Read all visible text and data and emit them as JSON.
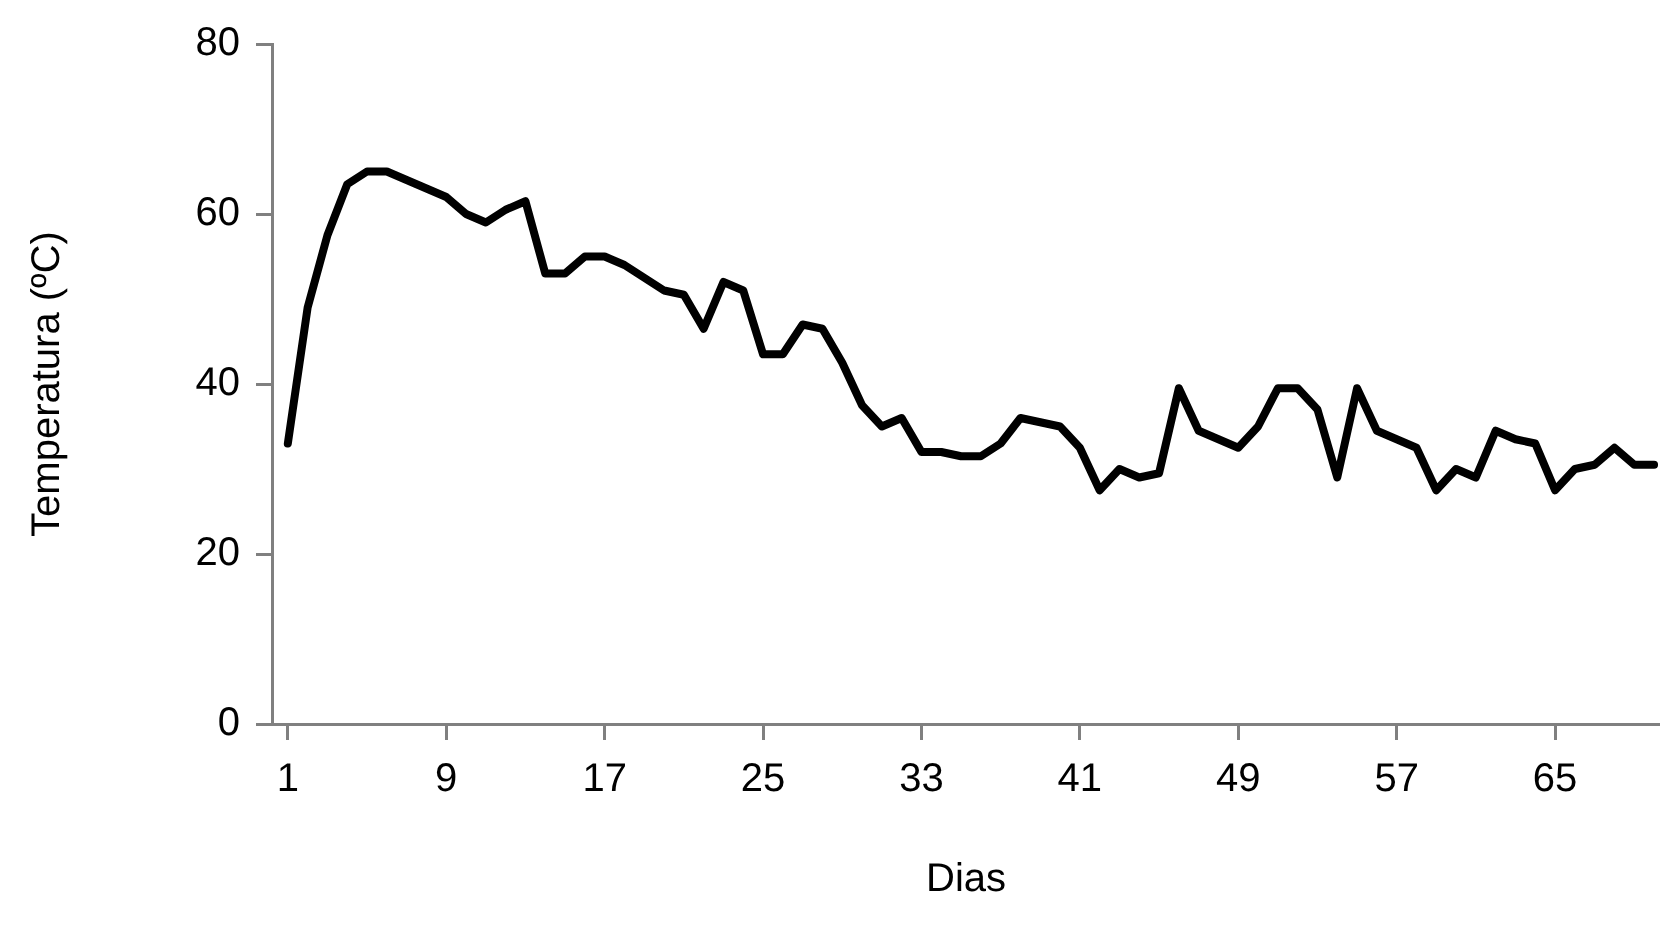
{
  "chart_data": {
    "type": "line",
    "xlabel": "Dias",
    "ylabel": "Temperatura (ºC)",
    "x": [
      1,
      2,
      3,
      4,
      5,
      6,
      7,
      8,
      9,
      10,
      11,
      12,
      13,
      14,
      15,
      16,
      17,
      18,
      19,
      20,
      21,
      22,
      23,
      24,
      25,
      26,
      27,
      28,
      29,
      30,
      31,
      32,
      33,
      34,
      35,
      36,
      37,
      38,
      39,
      40,
      41,
      42,
      43,
      44,
      45,
      46,
      47,
      48,
      49,
      50,
      51,
      52,
      53,
      54,
      55,
      56,
      57,
      58,
      59,
      60,
      61,
      62,
      63,
      64,
      65,
      66,
      67,
      68,
      69,
      70
    ],
    "series": [
      {
        "color": "#000000",
        "values": [
          33,
          49,
          57.5,
          63.5,
          65,
          65,
          64,
          63,
          62,
          60,
          59,
          60.5,
          61.5,
          53,
          53,
          55,
          55,
          54,
          52.5,
          51,
          50.5,
          46.5,
          52,
          51,
          43.5,
          43.5,
          47,
          46.5,
          42.5,
          37.5,
          35,
          36,
          32,
          32,
          31.5,
          31.5,
          33,
          36,
          35.5,
          35,
          32.5,
          27.5,
          30,
          29,
          29.5,
          39.5,
          34.5,
          33.5,
          32.5,
          35,
          39.5,
          39.5,
          37,
          29,
          39.5,
          34.5,
          33.5,
          32.5,
          27.5,
          30,
          29,
          34.5,
          33.5,
          33,
          27.5,
          30,
          30.5,
          32.5,
          30.5,
          30.5
        ]
      }
    ],
    "xlim": [
      0.2,
      70.3
    ],
    "xticks": [
      1,
      9,
      17,
      25,
      33,
      41,
      49,
      57,
      65
    ],
    "ylim": [
      0,
      80
    ],
    "yticks": [
      0,
      20,
      40,
      60,
      80
    ],
    "grid": false,
    "legend": false,
    "marker": "none",
    "line_style": "solid"
  }
}
